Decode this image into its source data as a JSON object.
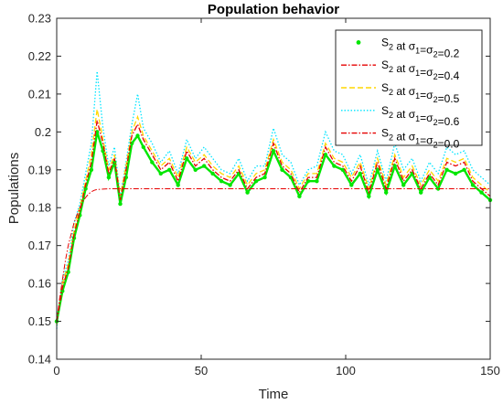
{
  "chart_data": {
    "type": "line",
    "title": "Population behavior",
    "xlabel": "Time",
    "ylabel": "Populations",
    "xlim": [
      0,
      150
    ],
    "ylim": [
      0.14,
      0.23
    ],
    "x_ticks": [
      "0",
      "50",
      "100",
      "150"
    ],
    "y_ticks": [
      "0.14",
      "0.15",
      "0.16",
      "0.17",
      "0.18",
      "0.19",
      "0.2",
      "0.21",
      "0.22",
      "0.23"
    ],
    "legend_position": "top-right",
    "series": [
      {
        "name_parts": {
          "main": "S",
          "sub": "2",
          "mid": " at σ",
          "sub1": "1",
          "eq": "=σ",
          "sub2": "2",
          "val": "=0.2"
        },
        "color": "#00e600",
        "style": "dots",
        "x": [
          0,
          2,
          4,
          6,
          8,
          10,
          12,
          14,
          16,
          18,
          20,
          22,
          24,
          26,
          28,
          30,
          33,
          36,
          39,
          42,
          45,
          48,
          51,
          54,
          57,
          60,
          63,
          66,
          69,
          72,
          75,
          78,
          81,
          84,
          87,
          90,
          93,
          96,
          99,
          102,
          105,
          108,
          111,
          114,
          117,
          120,
          123,
          126,
          129,
          132,
          135,
          138,
          141,
          144,
          147,
          150
        ],
        "values": [
          0.15,
          0.158,
          0.163,
          0.172,
          0.178,
          0.185,
          0.19,
          0.2,
          0.195,
          0.188,
          0.192,
          0.181,
          0.188,
          0.197,
          0.199,
          0.196,
          0.192,
          0.189,
          0.19,
          0.186,
          0.193,
          0.19,
          0.191,
          0.189,
          0.187,
          0.186,
          0.189,
          0.184,
          0.187,
          0.188,
          0.195,
          0.19,
          0.188,
          0.183,
          0.187,
          0.187,
          0.194,
          0.191,
          0.19,
          0.186,
          0.189,
          0.183,
          0.19,
          0.184,
          0.191,
          0.186,
          0.189,
          0.184,
          0.188,
          0.185,
          0.19,
          0.189,
          0.19,
          0.186,
          0.184,
          0.182
        ]
      },
      {
        "name_parts": {
          "main": "S",
          "sub": "2",
          "mid": " at σ",
          "sub1": "1",
          "eq": "=σ",
          "sub2": "2",
          "val": "=0.4"
        },
        "color": "#e60000",
        "style": "dashdot",
        "x": [
          0,
          2,
          4,
          6,
          8,
          10,
          12,
          14,
          16,
          18,
          20,
          22,
          24,
          26,
          28,
          30,
          33,
          36,
          39,
          42,
          45,
          48,
          51,
          54,
          57,
          60,
          63,
          66,
          69,
          72,
          75,
          78,
          81,
          84,
          87,
          90,
          93,
          96,
          99,
          102,
          105,
          108,
          111,
          114,
          117,
          120,
          123,
          126,
          129,
          132,
          135,
          138,
          141,
          144,
          147,
          150
        ],
        "values": [
          0.15,
          0.159,
          0.164,
          0.173,
          0.179,
          0.186,
          0.192,
          0.203,
          0.197,
          0.189,
          0.193,
          0.182,
          0.19,
          0.199,
          0.202,
          0.198,
          0.194,
          0.19,
          0.192,
          0.187,
          0.195,
          0.191,
          0.193,
          0.19,
          0.188,
          0.187,
          0.19,
          0.185,
          0.188,
          0.189,
          0.197,
          0.191,
          0.189,
          0.184,
          0.188,
          0.188,
          0.196,
          0.192,
          0.191,
          0.187,
          0.191,
          0.184,
          0.192,
          0.185,
          0.193,
          0.187,
          0.19,
          0.185,
          0.189,
          0.186,
          0.192,
          0.191,
          0.192,
          0.187,
          0.185,
          0.183
        ]
      },
      {
        "name_parts": {
          "main": "S",
          "sub": "2",
          "mid": " at σ",
          "sub1": "1",
          "eq": "=σ",
          "sub2": "2",
          "val": "=0.5"
        },
        "color": "#ffd700",
        "style": "dashed",
        "x": [
          0,
          2,
          4,
          6,
          8,
          10,
          12,
          14,
          16,
          18,
          20,
          22,
          24,
          26,
          28,
          30,
          33,
          36,
          39,
          42,
          45,
          48,
          51,
          54,
          57,
          60,
          63,
          66,
          69,
          72,
          75,
          78,
          81,
          84,
          87,
          90,
          93,
          96,
          99,
          102,
          105,
          108,
          111,
          114,
          117,
          120,
          123,
          126,
          129,
          132,
          135,
          138,
          141,
          144,
          147,
          150
        ],
        "values": [
          0.149,
          0.16,
          0.165,
          0.174,
          0.18,
          0.187,
          0.194,
          0.206,
          0.198,
          0.19,
          0.194,
          0.183,
          0.191,
          0.2,
          0.204,
          0.199,
          0.195,
          0.191,
          0.193,
          0.188,
          0.196,
          0.192,
          0.194,
          0.191,
          0.189,
          0.188,
          0.191,
          0.186,
          0.189,
          0.19,
          0.198,
          0.192,
          0.19,
          0.185,
          0.189,
          0.189,
          0.197,
          0.193,
          0.192,
          0.188,
          0.192,
          0.185,
          0.193,
          0.186,
          0.194,
          0.188,
          0.191,
          0.186,
          0.19,
          0.187,
          0.193,
          0.192,
          0.193,
          0.188,
          0.186,
          0.184
        ]
      },
      {
        "name_parts": {
          "main": "S",
          "sub": "2",
          "mid": " at σ",
          "sub1": "1",
          "eq": "=σ",
          "sub2": "2",
          "val": "=0.6"
        },
        "color": "#00e5ff",
        "style": "dotted",
        "x": [
          0,
          2,
          4,
          6,
          8,
          10,
          12,
          14,
          16,
          18,
          20,
          22,
          24,
          26,
          28,
          30,
          33,
          36,
          39,
          42,
          45,
          48,
          51,
          54,
          57,
          60,
          63,
          66,
          69,
          72,
          75,
          78,
          81,
          84,
          87,
          90,
          93,
          96,
          99,
          102,
          105,
          108,
          111,
          114,
          117,
          120,
          123,
          126,
          129,
          132,
          135,
          138,
          141,
          144,
          147,
          150
        ],
        "values": [
          0.148,
          0.161,
          0.166,
          0.176,
          0.181,
          0.189,
          0.197,
          0.216,
          0.201,
          0.191,
          0.196,
          0.183,
          0.192,
          0.202,
          0.21,
          0.201,
          0.197,
          0.192,
          0.195,
          0.189,
          0.198,
          0.193,
          0.196,
          0.193,
          0.19,
          0.189,
          0.193,
          0.187,
          0.191,
          0.191,
          0.201,
          0.194,
          0.192,
          0.186,
          0.19,
          0.191,
          0.2,
          0.195,
          0.194,
          0.189,
          0.194,
          0.186,
          0.195,
          0.187,
          0.197,
          0.19,
          0.193,
          0.187,
          0.192,
          0.189,
          0.196,
          0.194,
          0.195,
          0.19,
          0.188,
          0.186
        ]
      },
      {
        "name_parts": {
          "main": "S",
          "sub": "2",
          "mid": " at σ",
          "sub1": "1",
          "eq": "=σ",
          "sub2": "2",
          "val": "=0.0"
        },
        "color": "#e60000",
        "style": "dashdot",
        "x": [
          0,
          1,
          2,
          3,
          4,
          5,
          6,
          7,
          8,
          9,
          10,
          11,
          12,
          13,
          14,
          16,
          18,
          20,
          25,
          30,
          40,
          50,
          60,
          70,
          80,
          90,
          100,
          110,
          120,
          130,
          140,
          150
        ],
        "values": [
          0.15,
          0.156,
          0.161,
          0.166,
          0.17,
          0.173,
          0.176,
          0.178,
          0.18,
          0.1815,
          0.1827,
          0.1836,
          0.1842,
          0.1846,
          0.1848,
          0.1849,
          0.185,
          0.185,
          0.185,
          0.185,
          0.185,
          0.185,
          0.185,
          0.185,
          0.185,
          0.185,
          0.185,
          0.185,
          0.185,
          0.185,
          0.185,
          0.185
        ]
      }
    ]
  }
}
